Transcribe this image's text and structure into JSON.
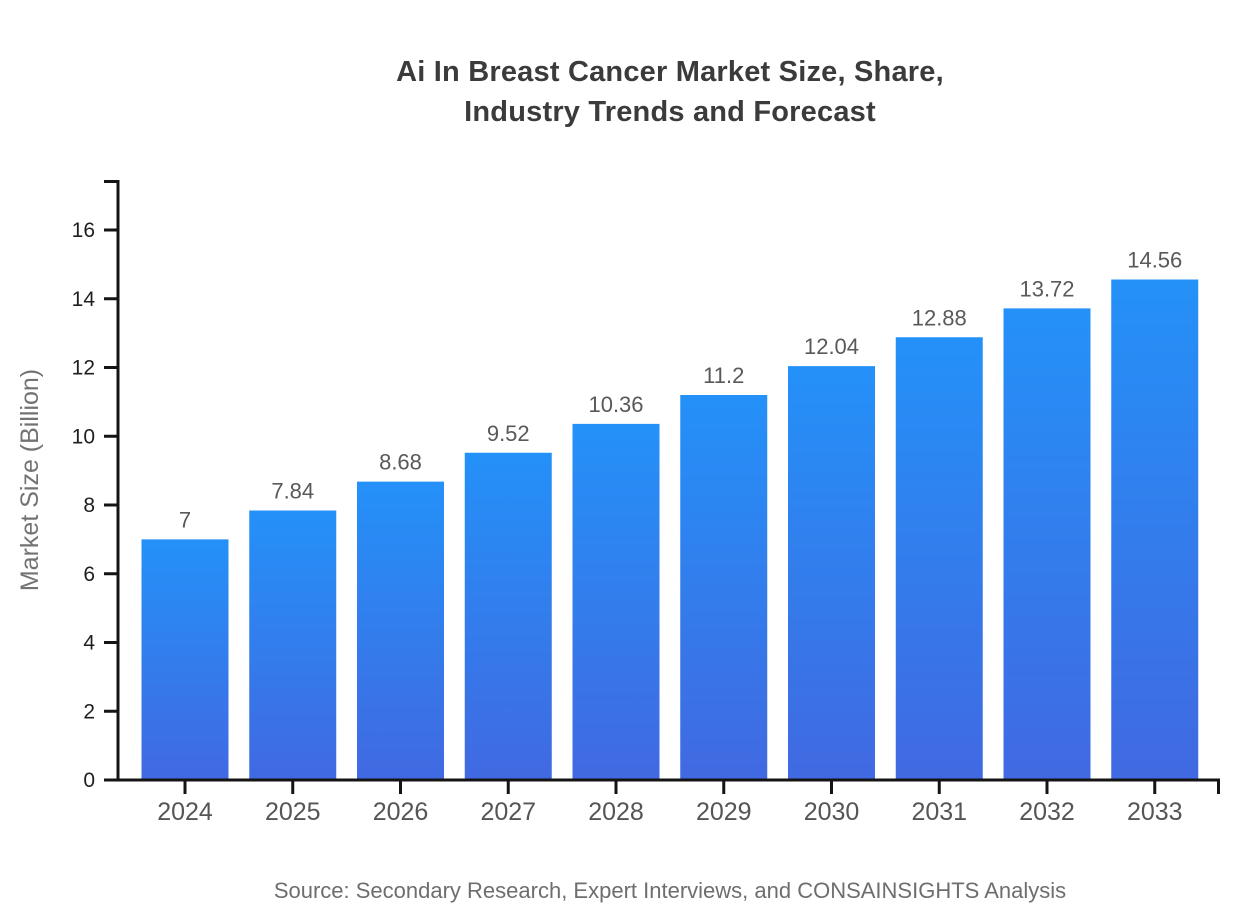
{
  "page": {
    "title_line1": "Ai In Breast Cancer Market Size, Share,",
    "title_line2": "Industry Trends and Forecast",
    "source_note": "Source: Secondary Research, Expert Interviews, and CONSAINSIGHTS Analysis"
  },
  "chart_data": {
    "type": "bar",
    "title": "Ai In Breast Cancer Market Size, Share, Industry Trends and Forecast",
    "categories": [
      "2024",
      "2025",
      "2026",
      "2027",
      "2028",
      "2029",
      "2030",
      "2031",
      "2032",
      "2033"
    ],
    "values": [
      7,
      7.84,
      8.68,
      9.52,
      10.36,
      11.2,
      12.04,
      12.88,
      13.72,
      14.56
    ],
    "value_labels": [
      "7",
      "7.84",
      "8.68",
      "9.52",
      "10.36",
      "11.2",
      "12.04",
      "12.88",
      "13.72",
      "14.56"
    ],
    "xlabel": "",
    "ylabel": "Market Size (Billion)",
    "ylim": [
      0,
      17.45
    ],
    "yticks": [
      0,
      2,
      4,
      6,
      8,
      10,
      12,
      14,
      16
    ],
    "grid": false,
    "legend": "none",
    "colors": {
      "bar_gradient_top": "#2491f8",
      "bar_gradient_bottom": "#4169e1",
      "axis": "#141414",
      "y_tick_label": "#1f1f1f",
      "x_tick_label": "#555555",
      "value_label": "#595959",
      "ylabel": "#737373"
    }
  }
}
